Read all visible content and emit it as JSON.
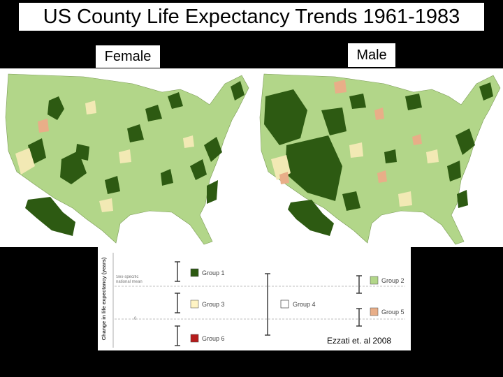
{
  "title": "US County Life Expectancy Trends 1961-1983",
  "maps": {
    "female_label": "Female",
    "male_label": "Male"
  },
  "legend": {
    "axis_label": "Change in life expectancy (years)",
    "mean_label": "Sex-specific national mean",
    "groups": [
      {
        "name": "Group 1",
        "color": "#2d5a12"
      },
      {
        "name": "Group 2",
        "color": "#b2d689"
      },
      {
        "name": "Group 3",
        "color": "#fff4c4"
      },
      {
        "name": "Group 4",
        "color": "#ffffff"
      },
      {
        "name": "Group 5",
        "color": "#e8ae88"
      },
      {
        "name": "Group 6",
        "color": "#b51c1c"
      }
    ]
  },
  "credit": "Ezzati  et. al 2008",
  "colors": {
    "land_light": "#b2d689",
    "land_dark": "#2d5a12",
    "land_pale": "#f2e9b4",
    "land_orange": "#e8ae88"
  }
}
